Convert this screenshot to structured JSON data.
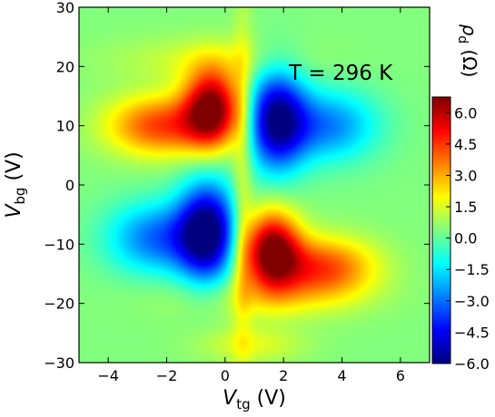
{
  "chart_data": {
    "type": "heatmap",
    "colormap": "jet",
    "xlabel": {
      "base": "V",
      "sub": "tg",
      "unit": " (V)"
    },
    "ylabel": {
      "base": "V",
      "sub": "bg",
      "unit": " (V)"
    },
    "xlim": [
      -5,
      7
    ],
    "ylim": [
      -30,
      30
    ],
    "xticks": [
      -4,
      -2,
      0,
      2,
      4,
      6
    ],
    "xtick_labels": [
      "−4",
      "−2",
      "0",
      "2",
      "4",
      "6"
    ],
    "yticks": [
      -30,
      -20,
      -10,
      0,
      10,
      20,
      30
    ],
    "ytick_labels": [
      "−30",
      "−20",
      "−10",
      "0",
      "10",
      "20",
      "30"
    ],
    "annotation": "T = 296 K",
    "colorbar": {
      "title": {
        "base": "ρ",
        "sub": "d",
        "unit": " (Ω)"
      },
      "range": [
        -6.0,
        6.75
      ],
      "ticks": [
        6.0,
        4.5,
        3.0,
        1.5,
        0.0,
        -1.5,
        -3.0,
        -4.5,
        -6.0
      ],
      "tick_labels": [
        "6.0",
        "4.5",
        "3.0",
        "1.5",
        "0.0",
        "−1.5",
        "−3.0",
        "−4.5",
        "−6.0"
      ]
    },
    "extrema": [
      {
        "x": -0.45,
        "y": 13,
        "value": 6.5
      },
      {
        "x": 1.6,
        "y": -11,
        "value": 6.5
      },
      {
        "x": -0.6,
        "y": -8,
        "value": -5.8
      },
      {
        "x": 1.7,
        "y": 11,
        "value": -5.2
      }
    ]
  }
}
